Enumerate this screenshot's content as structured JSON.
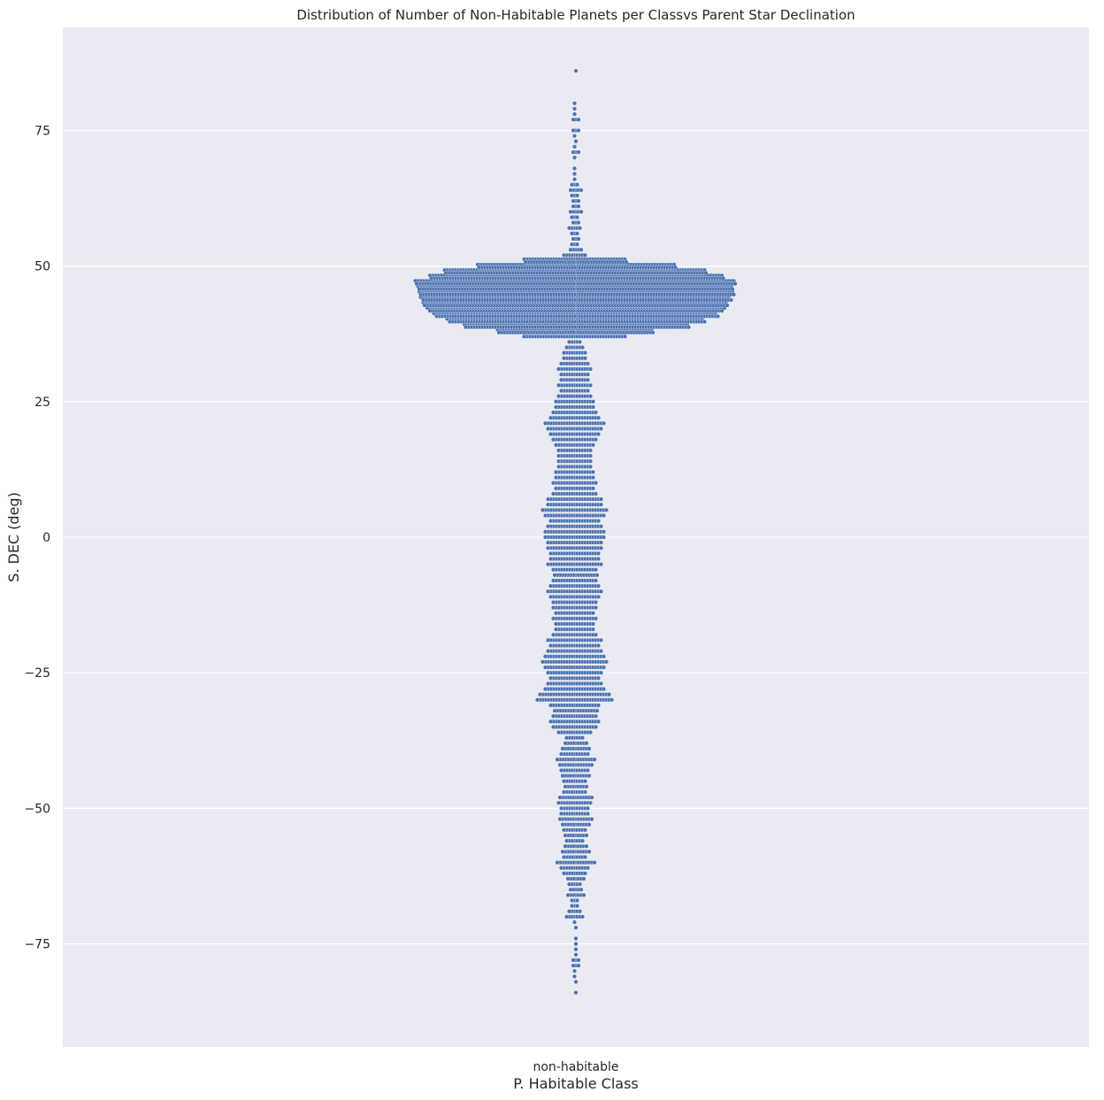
{
  "chart_data": {
    "type": "scatter",
    "style": "swarm",
    "title": "Distribution of Number of Non-Habitable Planets per Classvs Parent Star Declination",
    "xlabel": "P. Habitable Class",
    "ylabel": "S. DEC (deg)",
    "categories": [
      "non-habitable"
    ],
    "ylim": [
      -94,
      94
    ],
    "yticks": [
      75,
      50,
      25,
      0,
      -25,
      -50,
      -75
    ],
    "ytick_labels": [
      "75",
      "50",
      "25",
      "0",
      "−25",
      "−50",
      "−75"
    ],
    "grid": true,
    "legend": "none",
    "colors": {
      "background": "#eaeaf2",
      "grid": "#ffffff",
      "marker": "#4c72b0",
      "marker_edge": "#ffffff"
    },
    "series": [
      {
        "category": "non-habitable",
        "point_count_per_dec_bin": {
          "bin_width_deg": 1,
          "bins": [
            [
              -84,
              1
            ],
            [
              -82,
              1
            ],
            [
              -81,
              2
            ],
            [
              -80,
              2
            ],
            [
              -79,
              3
            ],
            [
              -78,
              3
            ],
            [
              -77,
              1
            ],
            [
              -76,
              1
            ],
            [
              -75,
              1
            ],
            [
              -74,
              1
            ],
            [
              -72,
              1
            ],
            [
              -71,
              2
            ],
            [
              -70,
              8
            ],
            [
              -69,
              6
            ],
            [
              -68,
              4
            ],
            [
              -67,
              4
            ],
            [
              -66,
              7
            ],
            [
              -65,
              5
            ],
            [
              -64,
              6
            ],
            [
              -63,
              7
            ],
            [
              -62,
              10
            ],
            [
              -61,
              12
            ],
            [
              -60,
              15
            ],
            [
              -59,
              10
            ],
            [
              -58,
              11
            ],
            [
              -57,
              9
            ],
            [
              -56,
              8
            ],
            [
              -55,
              9
            ],
            [
              -54,
              10
            ],
            [
              -53,
              11
            ],
            [
              -52,
              13
            ],
            [
              -51,
              12
            ],
            [
              -50,
              12
            ],
            [
              -49,
              14
            ],
            [
              -48,
              13
            ],
            [
              -47,
              10
            ],
            [
              -46,
              9
            ],
            [
              -45,
              10
            ],
            [
              -44,
              11
            ],
            [
              -43,
              12
            ],
            [
              -42,
              13
            ],
            [
              -41,
              15
            ],
            [
              -40,
              12
            ],
            [
              -39,
              11
            ],
            [
              -38,
              9
            ],
            [
              -37,
              8
            ],
            [
              -36,
              14
            ],
            [
              -35,
              18
            ],
            [
              -34,
              20
            ],
            [
              -33,
              18
            ],
            [
              -32,
              17
            ],
            [
              -31,
              20
            ],
            [
              -30,
              30
            ],
            [
              -29,
              28
            ],
            [
              -28,
              24
            ],
            [
              -27,
              22
            ],
            [
              -26,
              20
            ],
            [
              -25,
              22
            ],
            [
              -24,
              24
            ],
            [
              -23,
              26
            ],
            [
              -22,
              24
            ],
            [
              -21,
              22
            ],
            [
              -20,
              20
            ],
            [
              -19,
              22
            ],
            [
              -18,
              18
            ],
            [
              -17,
              16
            ],
            [
              -16,
              16
            ],
            [
              -15,
              18
            ],
            [
              -14,
              16
            ],
            [
              -13,
              18
            ],
            [
              -12,
              18
            ],
            [
              -11,
              20
            ],
            [
              -10,
              22
            ],
            [
              -9,
              20
            ],
            [
              -8,
              18
            ],
            [
              -7,
              17
            ],
            [
              -6,
              18
            ],
            [
              -5,
              22
            ],
            [
              -4,
              20
            ],
            [
              -3,
              20
            ],
            [
              -2,
              22
            ],
            [
              -1,
              22
            ],
            [
              0,
              24
            ],
            [
              1,
              24
            ],
            [
              2,
              22
            ],
            [
              3,
              20
            ],
            [
              4,
              24
            ],
            [
              5,
              26
            ],
            [
              6,
              22
            ],
            [
              7,
              22
            ],
            [
              8,
              18
            ],
            [
              9,
              16
            ],
            [
              10,
              18
            ],
            [
              11,
              16
            ],
            [
              12,
              16
            ],
            [
              13,
              14
            ],
            [
              14,
              14
            ],
            [
              15,
              14
            ],
            [
              16,
              14
            ],
            [
              17,
              16
            ],
            [
              18,
              18
            ],
            [
              19,
              20
            ],
            [
              20,
              22
            ],
            [
              21,
              24
            ],
            [
              22,
              20
            ],
            [
              23,
              18
            ],
            [
              24,
              16
            ],
            [
              25,
              16
            ],
            [
              26,
              14
            ],
            [
              27,
              12
            ],
            [
              28,
              14
            ],
            [
              29,
              12
            ],
            [
              30,
              12
            ],
            [
              31,
              14
            ],
            [
              32,
              12
            ],
            [
              33,
              10
            ],
            [
              34,
              10
            ],
            [
              35,
              8
            ],
            [
              36,
              6
            ],
            [
              37,
              40
            ],
            [
              38,
              120
            ],
            [
              39,
              170
            ],
            [
              40,
              195
            ],
            [
              41,
              215
            ],
            [
              42,
              225
            ],
            [
              43,
              232
            ],
            [
              44,
              235
            ],
            [
              45,
              238
            ],
            [
              46,
              240
            ],
            [
              47,
              244
            ],
            [
              48,
              222
            ],
            [
              49,
              200
            ],
            [
              50,
              150
            ],
            [
              51,
              80
            ],
            [
              52,
              10
            ],
            [
              53,
              5
            ],
            [
              54,
              4
            ],
            [
              55,
              3
            ],
            [
              56,
              4
            ],
            [
              57,
              6
            ],
            [
              58,
              3
            ],
            [
              59,
              4
            ],
            [
              60,
              5
            ],
            [
              61,
              3
            ],
            [
              62,
              3
            ],
            [
              63,
              4
            ],
            [
              64,
              5
            ],
            [
              65,
              4
            ],
            [
              66,
              2
            ],
            [
              67,
              2
            ],
            [
              68,
              2
            ],
            [
              70,
              2
            ],
            [
              71,
              3
            ],
            [
              72,
              2
            ],
            [
              73,
              1
            ],
            [
              74,
              2
            ],
            [
              75,
              3
            ],
            [
              77,
              3
            ],
            [
              78,
              2
            ],
            [
              79,
              2
            ],
            [
              80,
              2
            ],
            [
              86,
              1
            ]
          ]
        }
      }
    ]
  }
}
